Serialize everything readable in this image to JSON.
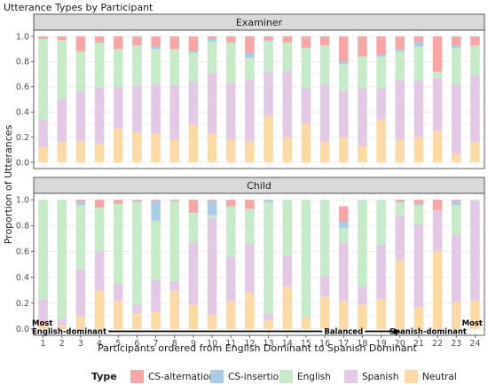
{
  "chart_data": {
    "type": "bar",
    "title": "Utterance Types by Participant",
    "xlabel": "Participants ordered from English Dominant to Spanish Dominant",
    "ylabel": "Proportion of Utterances",
    "ylim": [
      0,
      1
    ],
    "y_ticks": [
      "0.0",
      "0.2",
      "0.4",
      "0.6",
      "0.8",
      "1.0"
    ],
    "categories": [
      "1",
      "2",
      "3",
      "4",
      "5",
      "6",
      "7",
      "8",
      "9",
      "10",
      "11",
      "12",
      "13",
      "14",
      "15",
      "16",
      "17",
      "18",
      "19",
      "20",
      "21",
      "22",
      "23",
      "24"
    ],
    "legend": {
      "title": "Type",
      "position": "bottom",
      "items": [
        {
          "name": "CS-alternation",
          "color": "#f7a6a6"
        },
        {
          "name": "CS-insertion",
          "color": "#a9cbe8"
        },
        {
          "name": "English",
          "color": "#c6ebc9"
        },
        {
          "name": "Spanish",
          "color": "#e3c9e6"
        },
        {
          "name": "Neutral",
          "color": "#fdd9a5"
        }
      ]
    },
    "stack_order": [
      "Neutral",
      "Spanish",
      "English",
      "CS-insertion",
      "CS-alternation"
    ],
    "annotations": {
      "left": [
        "Most",
        "English-dominant"
      ],
      "middle": "Balanced",
      "right_top": "Most",
      "right_bottom": "Spanish-dominant"
    },
    "panels": [
      {
        "strip": "Examiner",
        "series": [
          {
            "name": "Neutral",
            "values": [
              0.12,
              0.16,
              0.17,
              0.15,
              0.27,
              0.24,
              0.23,
              0.18,
              0.3,
              0.23,
              0.18,
              0.17,
              0.37,
              0.2,
              0.31,
              0.16,
              0.2,
              0.13,
              0.34,
              0.18,
              0.2,
              0.25,
              0.07,
              0.16
            ]
          },
          {
            "name": "Spanish",
            "values": [
              0.22,
              0.34,
              0.39,
              0.45,
              0.33,
              0.37,
              0.39,
              0.43,
              0.34,
              0.48,
              0.45,
              0.49,
              0.35,
              0.53,
              0.28,
              0.46,
              0.37,
              0.46,
              0.25,
              0.48,
              0.45,
              0.42,
              0.55,
              0.53
            ]
          },
          {
            "name": "English",
            "values": [
              0.64,
              0.47,
              0.32,
              0.35,
              0.3,
              0.32,
              0.28,
              0.29,
              0.23,
              0.25,
              0.32,
              0.17,
              0.24,
              0.22,
              0.32,
              0.31,
              0.21,
              0.25,
              0.25,
              0.22,
              0.27,
              0.05,
              0.29,
              0.24
            ]
          },
          {
            "name": "CS-insertion",
            "values": [
              0.0,
              0.0,
              0.0,
              0.0,
              0.0,
              0.0,
              0.02,
              0.0,
              0.01,
              0.02,
              0.0,
              0.04,
              0.01,
              0.0,
              0.0,
              0.0,
              0.02,
              0.0,
              0.02,
              0.02,
              0.04,
              0.0,
              0.02,
              0.0
            ]
          },
          {
            "name": "CS-alternation",
            "values": [
              0.02,
              0.03,
              0.12,
              0.05,
              0.1,
              0.07,
              0.08,
              0.1,
              0.12,
              0.02,
              0.05,
              0.13,
              0.03,
              0.05,
              0.09,
              0.07,
              0.2,
              0.16,
              0.14,
              0.1,
              0.04,
              0.28,
              0.07,
              0.07
            ]
          }
        ]
      },
      {
        "strip": "Child",
        "series": [
          {
            "name": "Neutral",
            "values": [
              0.06,
              0.03,
              0.1,
              0.3,
              0.22,
              0.12,
              0.13,
              0.3,
              0.19,
              0.11,
              0.22,
              0.28,
              0.07,
              0.33,
              0.09,
              0.25,
              0.22,
              0.19,
              0.23,
              0.53,
              0.17,
              0.6,
              0.21,
              0.22
            ]
          },
          {
            "name": "Spanish",
            "values": [
              0.17,
              0.05,
              0.36,
              0.3,
              0.13,
              0.07,
              0.25,
              0.07,
              0.48,
              0.75,
              0.34,
              0.38,
              0.05,
              0.24,
              0.0,
              0.16,
              0.45,
              0.14,
              0.42,
              0.35,
              0.64,
              0.32,
              0.52,
              0.77
            ]
          },
          {
            "name": "English",
            "values": [
              0.77,
              0.92,
              0.5,
              0.34,
              0.62,
              0.79,
              0.46,
              0.62,
              0.23,
              0.02,
              0.39,
              0.27,
              0.86,
              0.43,
              0.91,
              0.59,
              0.11,
              0.67,
              0.35,
              0.1,
              0.15,
              0.0,
              0.23,
              0.01
            ]
          },
          {
            "name": "CS-insertion",
            "values": [
              0.0,
              0.0,
              0.02,
              0.0,
              0.0,
              0.01,
              0.15,
              0.0,
              0.0,
              0.11,
              0.0,
              0.0,
              0.02,
              0.0,
              0.0,
              0.0,
              0.05,
              0.0,
              0.0,
              0.0,
              0.01,
              0.0,
              0.03,
              0.0
            ]
          },
          {
            "name": "CS-alternation",
            "values": [
              0.0,
              0.0,
              0.02,
              0.06,
              0.03,
              0.01,
              0.01,
              0.01,
              0.1,
              0.01,
              0.05,
              0.07,
              0.0,
              0.0,
              0.0,
              0.0,
              0.12,
              0.0,
              0.0,
              0.02,
              0.03,
              0.08,
              0.01,
              0.0
            ]
          }
        ]
      }
    ]
  }
}
